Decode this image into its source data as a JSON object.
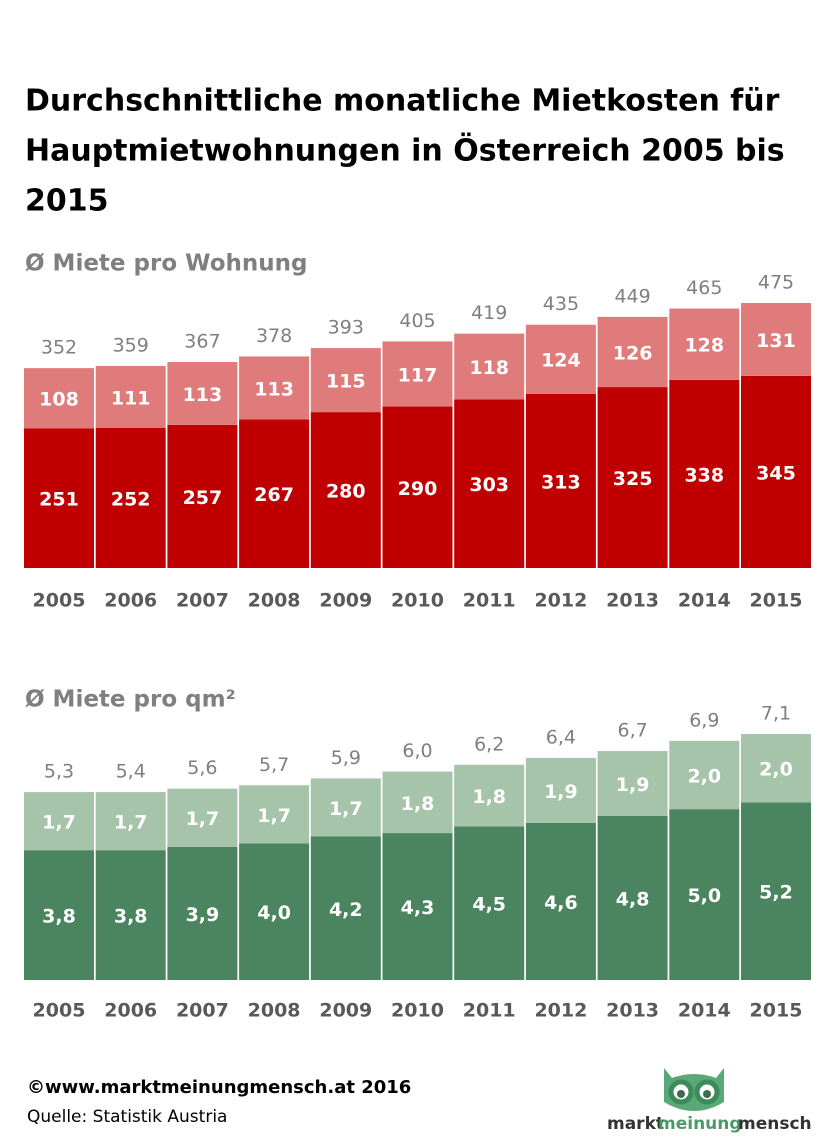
{
  "title": [
    "Durchschnittliche monatliche Mietkosten für",
    "Hauptmietwohnungen in Österreich 2005 bis",
    "2015"
  ],
  "chart_data": [
    {
      "type": "bar",
      "stacked": true,
      "subtitle": "Ø Miete pro Wohnung",
      "categories": [
        "2005",
        "2006",
        "2007",
        "2008",
        "2009",
        "2010",
        "2011",
        "2012",
        "2013",
        "2014",
        "2015"
      ],
      "series": [
        {
          "color": "#c00000",
          "values": [
            251,
            252,
            257,
            267,
            280,
            290,
            303,
            313,
            325,
            338,
            345
          ]
        },
        {
          "color": "#e07b7b",
          "values": [
            108,
            111,
            113,
            113,
            115,
            117,
            118,
            124,
            126,
            128,
            131
          ]
        }
      ],
      "totals": {
        "values": [
          352,
          359,
          367,
          378,
          393,
          405,
          419,
          435,
          449,
          465,
          475
        ]
      }
    },
    {
      "type": "bar",
      "stacked": true,
      "subtitle": "Ø Miete pro qm²",
      "categories": [
        "2005",
        "2006",
        "2007",
        "2008",
        "2009",
        "2010",
        "2011",
        "2012",
        "2013",
        "2014",
        "2015"
      ],
      "series": [
        {
          "color": "#4a8560",
          "values": [
            3.8,
            3.8,
            3.9,
            4.0,
            4.2,
            4.3,
            4.5,
            4.6,
            4.8,
            5.0,
            5.2
          ],
          "value_labels": [
            "3,8",
            "3,8",
            "3,9",
            "4,0",
            "4,2",
            "4,3",
            "4,5",
            "4,6",
            "4,8",
            "5,0",
            "5,2"
          ]
        },
        {
          "color": "#a6c4aa",
          "values": [
            1.7,
            1.7,
            1.7,
            1.7,
            1.7,
            1.8,
            1.8,
            1.9,
            1.9,
            2.0,
            2.0
          ],
          "value_labels": [
            "1,7",
            "1,7",
            "1,7",
            "1,7",
            "1,7",
            "1,8",
            "1,8",
            "1,9",
            "1,9",
            "2,0",
            "2,0"
          ]
        }
      ],
      "totals": {
        "values": [
          5.3,
          5.4,
          5.6,
          5.7,
          5.9,
          6.0,
          6.2,
          6.4,
          6.7,
          6.9,
          7.1
        ],
        "value_labels": [
          "5,3",
          "5,4",
          "5,6",
          "5,7",
          "5,9",
          "6,0",
          "6,2",
          "6,4",
          "6,7",
          "6,9",
          "7,1"
        ]
      }
    }
  ],
  "footer": {
    "copyright": "©www.marktmeinungmensch.at 2016",
    "source": "Quelle:  Statistik Austria"
  },
  "logo": [
    "markt",
    "meinung",
    "mensch"
  ]
}
